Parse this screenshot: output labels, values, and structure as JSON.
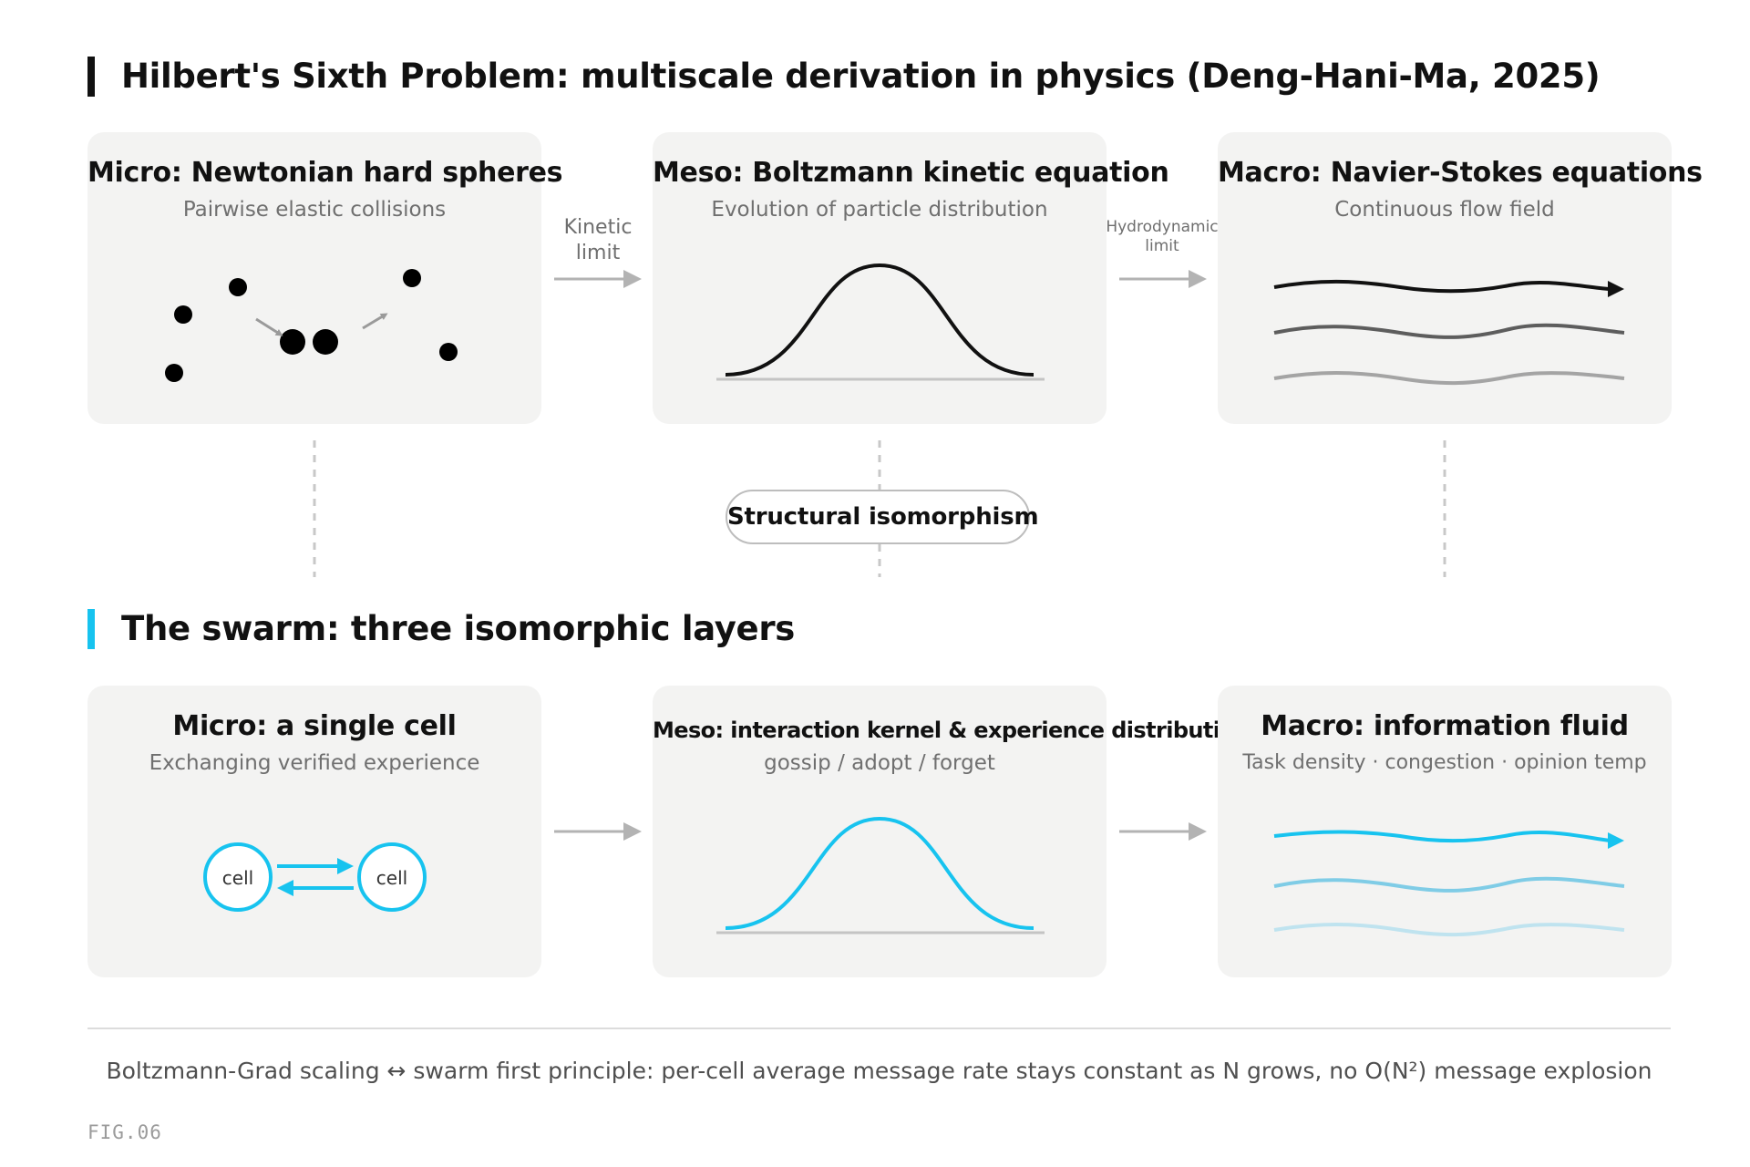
{
  "colors": {
    "physics_accent": "#111111",
    "swarm_accent": "#17c3ef",
    "panel_bg": "#f3f3f2",
    "arrow_gray": "#b3b3b3"
  },
  "physics": {
    "title": "Hilbert's Sixth Problem: multiscale derivation in physics (Deng-Hani-Ma, 2025)",
    "panels": [
      {
        "title": "Micro: Newtonian hard spheres",
        "subtitle": "Pairwise elastic collisions"
      },
      {
        "title": "Meso: Boltzmann kinetic equation",
        "subtitle": "Evolution of particle distribution"
      },
      {
        "title": "Macro: Navier-Stokes equations",
        "subtitle": "Continuous flow field"
      }
    ],
    "arrow_1_label": [
      "Kinetic",
      "limit"
    ],
    "arrow_2_label": [
      "Hydrodynamic",
      "limit"
    ]
  },
  "bridge": {
    "label": "Structural isomorphism"
  },
  "swarm": {
    "title": "The swarm: three isomorphic layers",
    "panels": [
      {
        "title": "Micro: a single cell",
        "subtitle": "Exchanging verified experience"
      },
      {
        "title": "Meso: interaction kernel & experience distribution",
        "subtitle": "gossip / adopt / forget"
      },
      {
        "title": "Macro: information fluid",
        "subtitle": "Task density · congestion · opinion temp"
      }
    ],
    "cell_label_left": "cell",
    "cell_label_right": "cell"
  },
  "footer": {
    "note": "Boltzmann-Grad scaling ↔ swarm first principle: per-cell average message rate stays constant as N grows, no O(N²) message explosion",
    "figure_label": "FIG.06"
  }
}
